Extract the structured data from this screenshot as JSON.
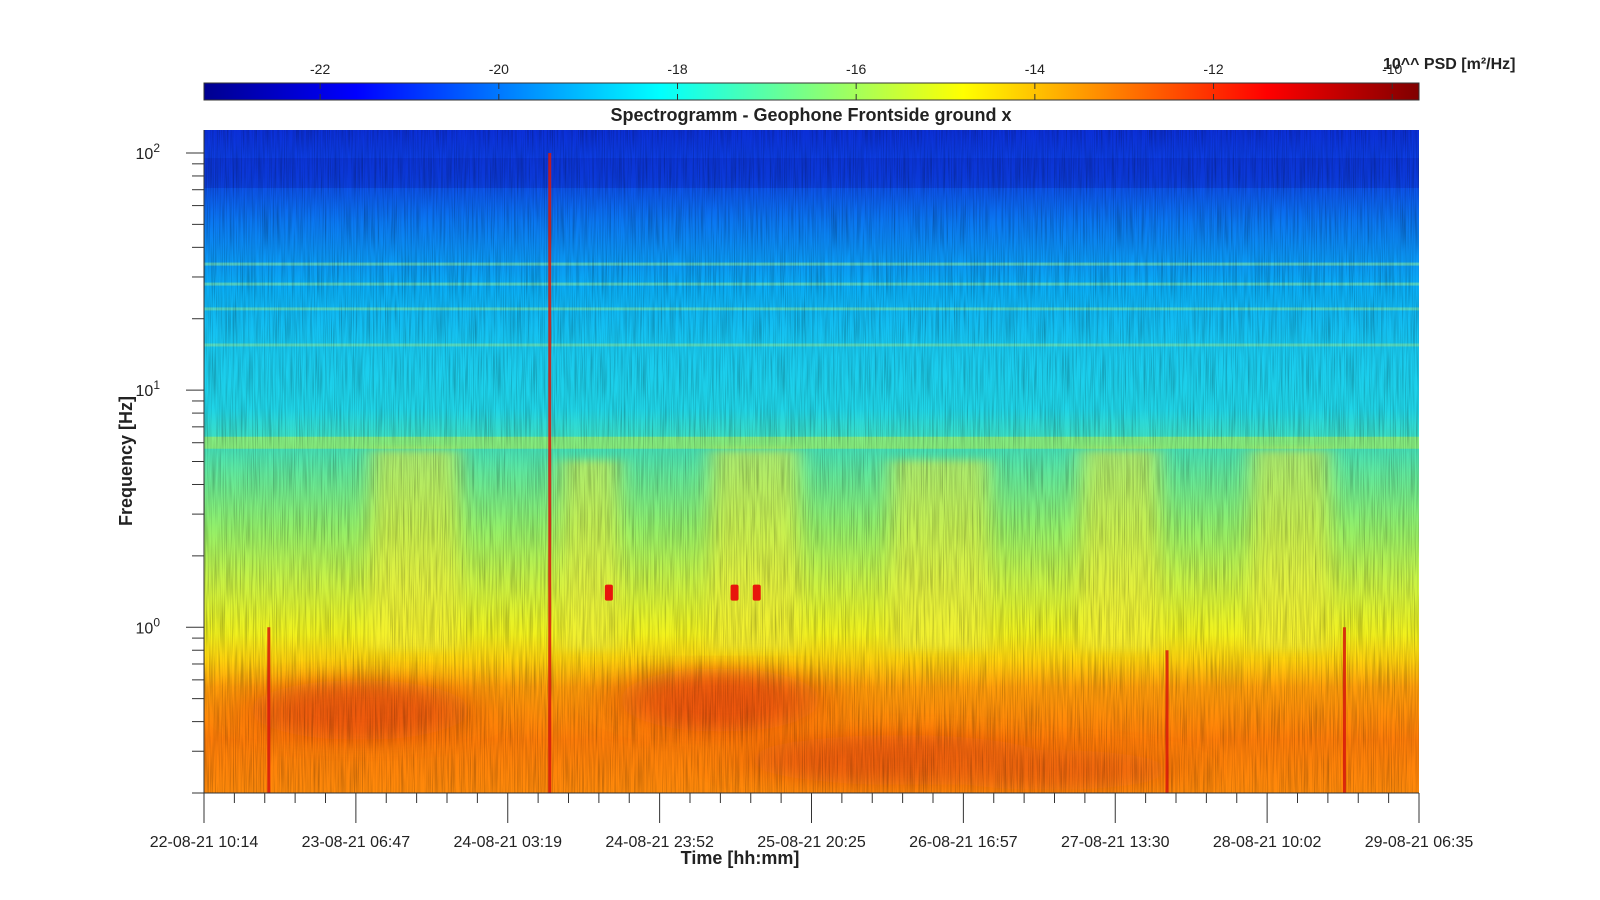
{
  "chart_data": {
    "type": "heatmap",
    "title": "Spectrogramm - Geophone Frontside ground x",
    "xlabel": "Time [hh:mm]",
    "ylabel": "Frequency [Hz]",
    "y_scale": "log",
    "ylim": [
      0.2,
      125
    ],
    "y_ticks": [
      {
        "value": 100,
        "label": "10",
        "exp": "2"
      },
      {
        "value": 10,
        "label": "10",
        "exp": "1"
      },
      {
        "value": 1,
        "label": "10",
        "exp": "0"
      }
    ],
    "x_ticks": [
      "22-08-21 10:14",
      "23-08-21 06:47",
      "24-08-21 03:19",
      "24-08-21 23:52",
      "25-08-21 20:25",
      "26-08-21 16:57",
      "27-08-21 13:30",
      "28-08-21 10:02",
      "29-08-21 06:35"
    ],
    "colorbar": {
      "label": "10^^ PSD [m²/Hz]",
      "range": [
        -23.3,
        -9.7
      ],
      "ticks": [
        -22,
        -20,
        -18,
        -16,
        -14,
        -12,
        -10
      ],
      "colormap": "jet"
    },
    "events": [
      {
        "time": "22-08-21 19:00",
        "freq_hz": 1.0,
        "kind": "broadband impulse"
      },
      {
        "time": "24-08-21 09:00",
        "freq_hz": 100.0,
        "kind": "broadband impulse"
      },
      {
        "time": "24-08-21 17:00",
        "freq_hz": 1.4,
        "kind": "narrow high-energy spot"
      },
      {
        "time": "25-08-21 10:00",
        "freq_hz": 1.4,
        "kind": "narrow high-energy spot"
      },
      {
        "time": "25-08-21 13:00",
        "freq_hz": 1.4,
        "kind": "narrow high-energy spot"
      },
      {
        "time": "27-08-21 20:30",
        "freq_hz": 0.8,
        "kind": "broadband impulse"
      },
      {
        "time": "28-08-21 20:30",
        "freq_hz": 1.0,
        "kind": "broadband impulse"
      }
    ],
    "persistent_lines_hz": [
      6.0,
      15.5,
      22.0,
      28.0,
      34.0
    ],
    "grid": false
  }
}
